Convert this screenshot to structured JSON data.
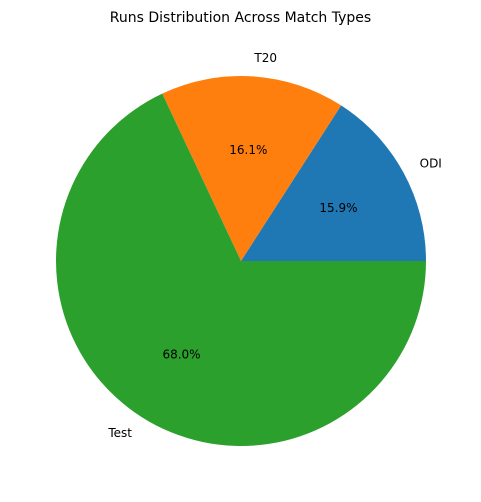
{
  "chart_data": {
    "type": "pie",
    "title": "Runs Distribution Across Match Types",
    "categories": [
      "ODI",
      "T20",
      "Test"
    ],
    "values": [
      15.9,
      16.1,
      68.0
    ],
    "value_labels": [
      "15.9%",
      "16.1%",
      "68.0%"
    ],
    "colors": [
      "#1f77b4",
      "#ff7f0e",
      "#2ca02c"
    ],
    "start_angle": 0,
    "direction": "counterclockwise",
    "legend": "none"
  }
}
